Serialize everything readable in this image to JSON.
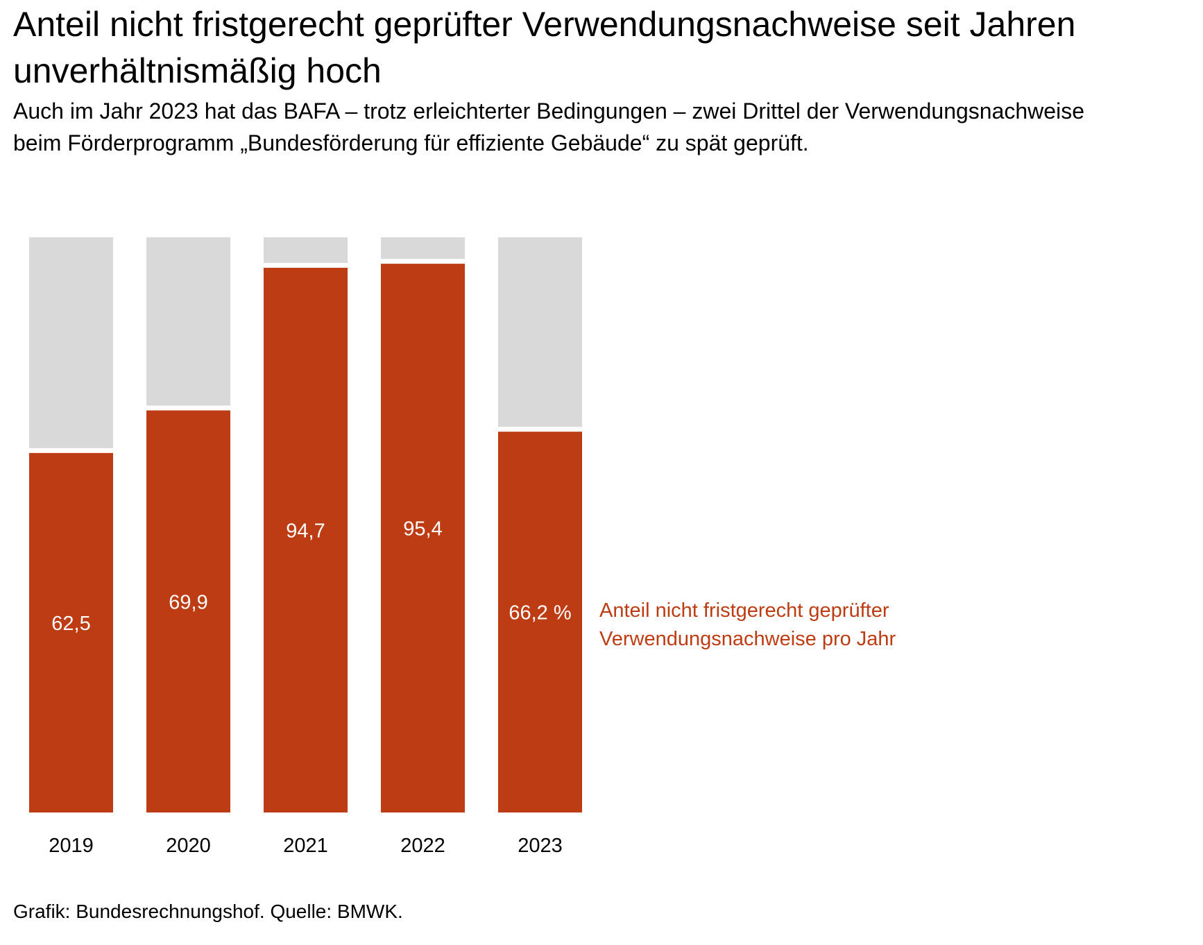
{
  "title": "Anteil nicht fristgerecht geprüfter Verwendungsnachweise seit Jahren unverhältnismäßig hoch",
  "subtitle": "Auch im Jahr 2023 hat das BAFA – trotz erleichterter Bedingungen – zwei Drittel der Verwendungsnachweise beim Förderprogramm „Bundesförderung für effiziente Gebäude“ zu spät geprüft.",
  "source": "Grafik: Bundesrechnungshof. Quelle: BMWK.",
  "colors": {
    "highlight": "#BE3C14",
    "remainder": "#D9D9D9"
  },
  "chart_data": {
    "type": "bar",
    "stacked": true,
    "categories": [
      "2019",
      "2020",
      "2021",
      "2022",
      "2023"
    ],
    "series": [
      {
        "name": "Anteil nicht fristgerecht geprüfter Verwendungsnachweise pro Jahr",
        "values": [
          62.5,
          69.9,
          94.7,
          95.4,
          66.2
        ]
      }
    ],
    "data_labels": [
      "62,5",
      "69,9",
      "94,7",
      "95,4",
      "66,2 %"
    ],
    "ylim": [
      0,
      100
    ],
    "grid": false,
    "legend": "right",
    "xlabel": "",
    "ylabel": ""
  }
}
